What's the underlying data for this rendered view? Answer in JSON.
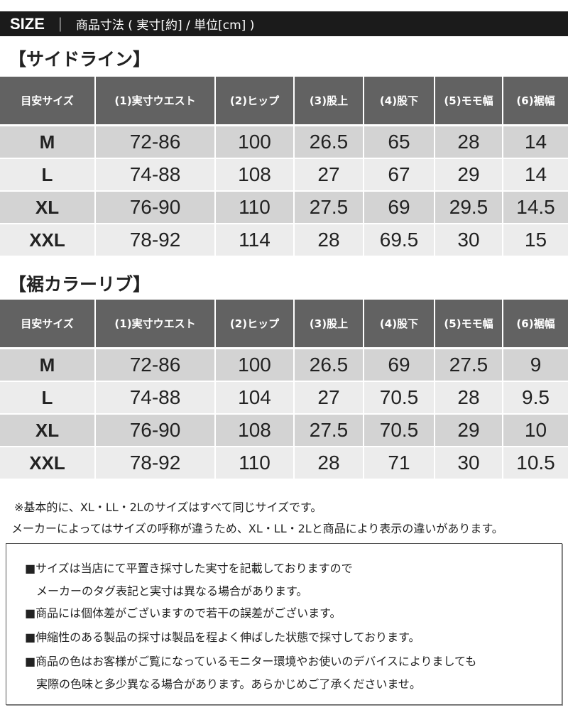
{
  "header": {
    "size_label": "SIZE",
    "separator": "｜",
    "subtitle": "商品寸法 ( 実寸[約] / 単位[cm] )"
  },
  "columns": [
    "目安サイズ",
    "(1)実寸ウエスト",
    "(2)ヒップ",
    "(3)股上",
    "(4)股下",
    "(5)モモ幅",
    "(6)裾幅"
  ],
  "tables": [
    {
      "title": "【サイドライン】",
      "rows": [
        [
          "M",
          "72-86",
          "100",
          "26.5",
          "65",
          "28",
          "14"
        ],
        [
          "L",
          "74-88",
          "108",
          "27",
          "67",
          "29",
          "14"
        ],
        [
          "XL",
          "76-90",
          "110",
          "27.5",
          "69",
          "29.5",
          "14.5"
        ],
        [
          "XXL",
          "78-92",
          "114",
          "28",
          "69.5",
          "30",
          "15"
        ]
      ]
    },
    {
      "title": "【裾カラーリブ】",
      "rows": [
        [
          "M",
          "72-86",
          "100",
          "26.5",
          "69",
          "27.5",
          "9"
        ],
        [
          "L",
          "74-88",
          "104",
          "27",
          "70.5",
          "28",
          "9.5"
        ],
        [
          "XL",
          "76-90",
          "108",
          "27.5",
          "70.5",
          "29",
          "10"
        ],
        [
          "XXL",
          "78-92",
          "110",
          "28",
          "71",
          "30",
          "10.5"
        ]
      ]
    }
  ],
  "notes": [
    "※基本的に、XL・LL・2Lのサイズはすべて同じサイズです。",
    "メーカーによってはサイズの呼称が違うため、XL・LL・2Lと商品により表示の違いがあります。"
  ],
  "disclaimer": [
    "■サイズは当店にて平置き採寸した実寸を記載しておりますので",
    "　メーカーのタグ表記と実寸は異なる場合があります。",
    "■商品には個体差がございますので若干の誤差がございます。",
    "■伸縮性のある製品の採寸は製品を程よく伸ばした状態で採寸しております。",
    "■商品の色はお客様がご覧になっているモニター環境やお使いのデバイスによりましても",
    "　実際の色味と多少異なる場合があります。あらかじめご了承くださいませ。"
  ],
  "colors": {
    "header_bar": "#1b1b1b",
    "table_header": "#626262",
    "row_dark": "#d3d3d3",
    "row_light": "#ececec"
  }
}
